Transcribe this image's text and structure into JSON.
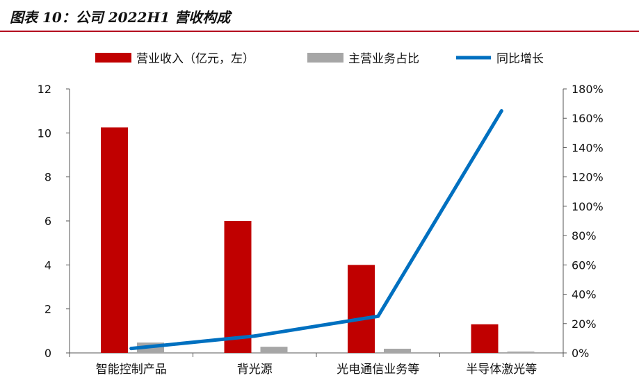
{
  "title": "图表 10：公司 2022H1 营收构成",
  "colors": {
    "revenue": "#c00000",
    "share": "#a6a6a6",
    "growth": "#0070c0",
    "accent": "#b4001e"
  },
  "chart_data": {
    "type": "bar",
    "categories": [
      "智能控制产品",
      "背光源",
      "光电通信业务等",
      "半导体激光等"
    ],
    "series": [
      {
        "name": "营业收入（亿元，左）",
        "type": "bar",
        "axis": "left",
        "values": [
          10.25,
          6.0,
          4.0,
          1.3
        ]
      },
      {
        "name": "主营业务占比",
        "type": "bar",
        "axis": "left",
        "values": [
          0.47,
          0.28,
          0.19,
          0.06
        ]
      },
      {
        "name": "同比增长",
        "type": "line",
        "axis": "right",
        "values": [
          0.03,
          0.115,
          0.25,
          1.65
        ]
      }
    ],
    "y_left": {
      "ylim": [
        0,
        12
      ],
      "ticks": [
        "0",
        "2",
        "4",
        "6",
        "8",
        "10",
        "12"
      ]
    },
    "y_right": {
      "ylim": [
        0,
        1.8
      ],
      "ticks": [
        "0%",
        "20%",
        "40%",
        "60%",
        "80%",
        "100%",
        "120%",
        "140%",
        "160%",
        "180%"
      ]
    },
    "legend_position": "top",
    "grid": false
  }
}
